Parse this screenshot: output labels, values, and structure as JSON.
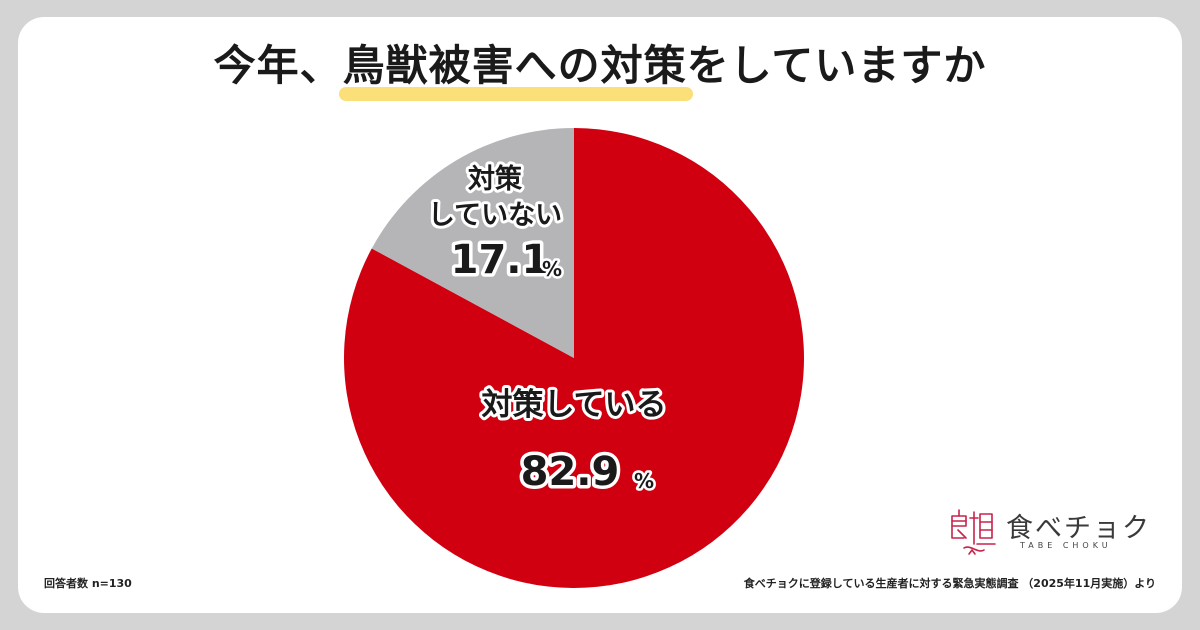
{
  "title": {
    "lead": "今年、",
    "highlight": "鳥獣被害への対策",
    "tail": "をしていますか"
  },
  "chart_data": {
    "type": "pie",
    "title": "今年、鳥獣被害への対策をしていますか",
    "unit": "%",
    "slices": [
      {
        "label": "対策している",
        "label_lines": [
          "対策している"
        ],
        "value": 82.9,
        "display": "82.9",
        "color": "#d10011"
      },
      {
        "label": "対策していない",
        "label_lines": [
          "対策",
          "していない"
        ],
        "value": 17.1,
        "display": "17.1",
        "color": "#b5b5b8"
      }
    ],
    "start_angle": "12 o'clock",
    "direction": "clockwise"
  },
  "footer": {
    "respondents": "回答者数 n=130",
    "source": "食べチョクに登録している生産者に対する緊急実態調査 （2025年11月実施）より"
  },
  "logo": {
    "name": "食べチョク",
    "sub": "TABE CHOKU",
    "accent_color": "#c8234b"
  }
}
